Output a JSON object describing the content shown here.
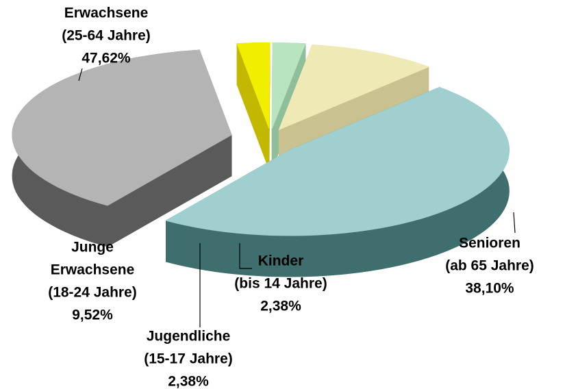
{
  "chart_data": {
    "type": "pie3d",
    "categories": [
      [
        "Erwachsene",
        "(25-64 Jahre)"
      ],
      [
        "Senioren",
        "(ab 65 Jahre)"
      ],
      [
        "Kinder",
        "(bis 14 Jahre)"
      ],
      [
        "Jugendliche",
        "(15-17 Jahre)"
      ],
      [
        "Junge",
        "Erwachsene",
        "(18-24 Jahre)"
      ]
    ],
    "values": [
      47.62,
      38.1,
      2.38,
      2.38,
      9.52
    ],
    "value_labels": [
      "47,62%",
      "38,10%",
      "2,38%",
      "2,38%",
      "9,52%"
    ],
    "colors": [
      "#9fd0cf",
      "#b4b4b4",
      "#f2ee00",
      "#b8e4c0",
      "#efeab5"
    ],
    "side_colors": [
      "#3f6e6e",
      "#5a5a5a",
      "#c2b800",
      "#8fbf9a",
      "#c9c190"
    ]
  }
}
